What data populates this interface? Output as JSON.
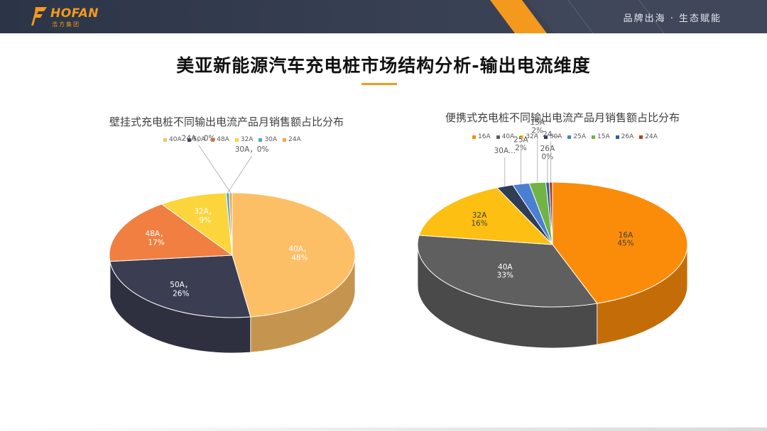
{
  "header": {
    "logo_text": "HOFAN",
    "logo_subtext": "浩方集团",
    "slogan": "品牌出海 · 生态赋能"
  },
  "page": {
    "title": "美亚新能源汽车充电桩市场结构分析-输出电流维度"
  },
  "colors": {
    "brand_orange": "#f39a1e",
    "header_bg": "#2c3447"
  },
  "chart_data": [
    {
      "type": "pie",
      "title": "壁挂式充电桩不同输出电流产品月销售额占比分布",
      "legend_position": "top",
      "categories": [
        "40A",
        "50A",
        "48A",
        "32A",
        "30A",
        "24A"
      ],
      "values": [
        48,
        26,
        17,
        9,
        0,
        0
      ],
      "unit": "%",
      "colors": [
        "#fdbf66",
        "#3b3e52",
        "#f07f41",
        "#fbd53b",
        "#49a8d5",
        "#f5a54a"
      ],
      "data_labels": [
        {
          "category": "40A",
          "text": "40A，48%"
        },
        {
          "category": "50A",
          "text": "50A，26%"
        },
        {
          "category": "48A",
          "text": "48A，17%"
        },
        {
          "category": "32A",
          "text": "32A，9%"
        },
        {
          "category": "30A",
          "text": "30A，0%"
        },
        {
          "category": "24A",
          "text": "24A，0%"
        }
      ]
    },
    {
      "type": "pie",
      "title": "便携式充电桩不同输出电流产品月销售额占比分布",
      "legend_position": "top",
      "categories": [
        "16A",
        "40A",
        "32A",
        "30A",
        "25A",
        "15A",
        "26A",
        "24A"
      ],
      "values": [
        45,
        33,
        16,
        2,
        2,
        2,
        0,
        0
      ],
      "unit": "%",
      "colors": [
        "#fb8c0a",
        "#5f5f5f",
        "#fcbf12",
        "#2f3d55",
        "#4a7fd4",
        "#71b345",
        "#2d5da4",
        "#a84628"
      ],
      "data_labels": [
        {
          "category": "16A",
          "text": "16A 45%"
        },
        {
          "category": "40A",
          "text": "40A 33%"
        },
        {
          "category": "32A",
          "text": "32A 16%"
        },
        {
          "category": "30A",
          "text": "30A..."
        },
        {
          "category": "25A",
          "text": "25A 2%"
        },
        {
          "category": "15A",
          "text": "15A 2%"
        },
        {
          "category": "26A",
          "text": "26A 0%"
        },
        {
          "category": "24A",
          "text": "24..."
        }
      ]
    }
  ]
}
